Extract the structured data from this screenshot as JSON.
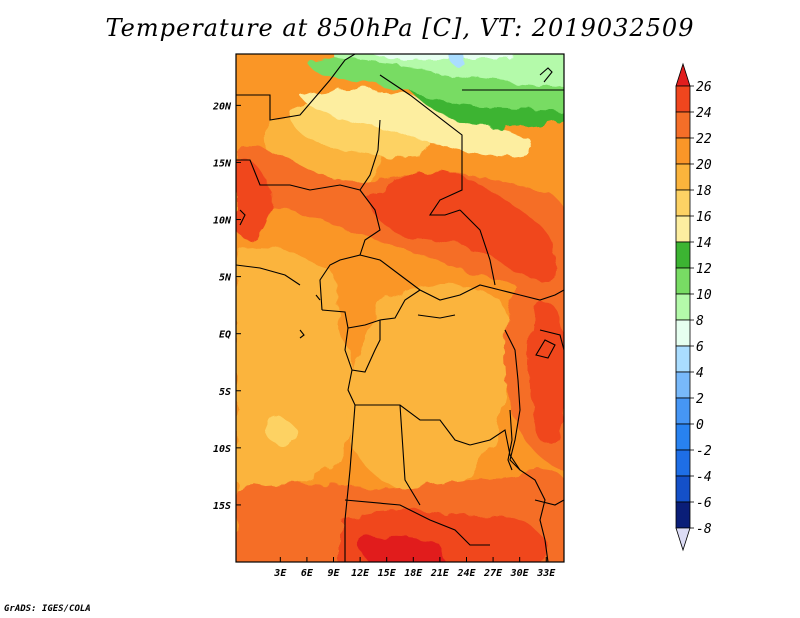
{
  "title": "Temperature at 850hPa [C], VT: 2019032509",
  "credit": "GrADS: IGES/COLA",
  "map": {
    "lon_range": [
      -2,
      35
    ],
    "lat_range": [
      -20,
      24.5
    ],
    "lon_ticks": [
      {
        "value": 3,
        "label": "3E"
      },
      {
        "value": 6,
        "label": "6E"
      },
      {
        "value": 9,
        "label": "9E"
      },
      {
        "value": 12,
        "label": "12E"
      },
      {
        "value": 15,
        "label": "15E"
      },
      {
        "value": 18,
        "label": "18E"
      },
      {
        "value": 21,
        "label": "21E"
      },
      {
        "value": 24,
        "label": "24E"
      },
      {
        "value": 27,
        "label": "27E"
      },
      {
        "value": 30,
        "label": "30E"
      },
      {
        "value": 33,
        "label": "33E"
      }
    ],
    "lat_ticks": [
      {
        "value": 20,
        "label": "20N"
      },
      {
        "value": 15,
        "label": "15N"
      },
      {
        "value": 10,
        "label": "10N"
      },
      {
        "value": 5,
        "label": "5N"
      },
      {
        "value": 0,
        "label": "EQ"
      },
      {
        "value": -5,
        "label": "5S"
      },
      {
        "value": -10,
        "label": "10S"
      },
      {
        "value": -15,
        "label": "15S"
      }
    ]
  },
  "colorbar": {
    "levels": [
      26,
      24,
      22,
      20,
      18,
      16,
      14,
      12,
      10,
      8,
      6,
      4,
      2,
      0,
      -2,
      -4,
      -6,
      -8
    ],
    "colors": [
      "#e11e1e",
      "#f0461e",
      "#f56e28",
      "#fa9628",
      "#fbb43c",
      "#fdd264",
      "#fdeea0",
      "#3cb432",
      "#78dc64",
      "#b4faaa",
      "#e6fff0",
      "#aaddff",
      "#78b9fa",
      "#4696f5",
      "#2882f0",
      "#1e6ee6",
      "#1450c8",
      "#0a1e78",
      "#dcdcf5"
    ]
  },
  "colors": {
    "c_26": "#e11e1e",
    "c_24": "#f0461e",
    "c_22": "#f56e28",
    "c_20": "#fa9628",
    "c_18": "#fbb43c",
    "c_16": "#fdd264",
    "c_14": "#fdeea0",
    "c_12": "#3cb432",
    "c_10": "#78dc64",
    "c_8": "#b4faaa",
    "c_6": "#e6fff0",
    "c_4": "#aaddff"
  }
}
